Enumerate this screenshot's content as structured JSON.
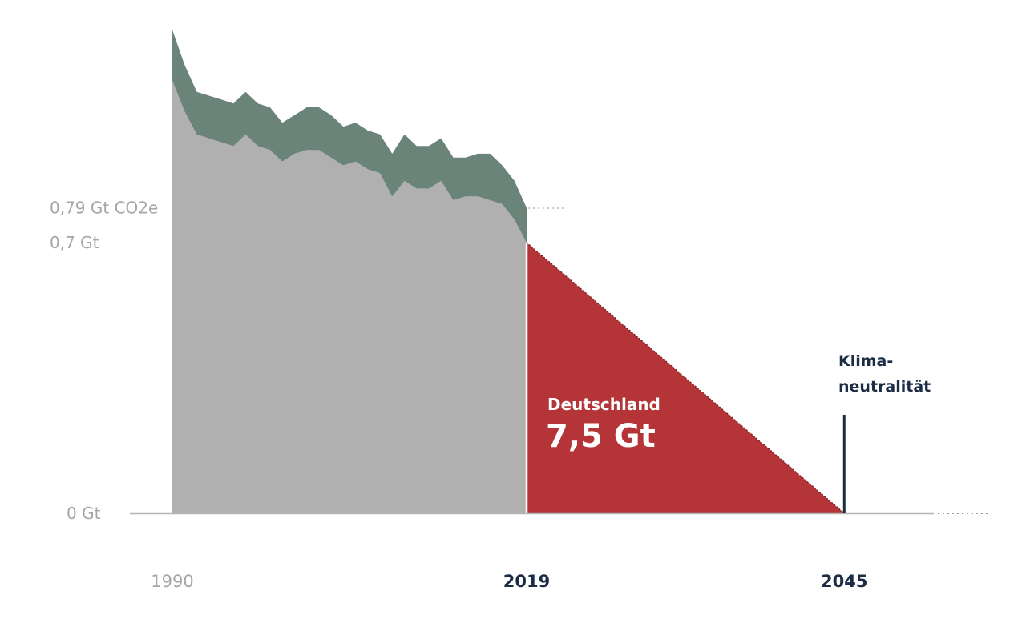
{
  "chart_data": {
    "type": "area",
    "title": "",
    "xlabel": "",
    "ylabel": "",
    "xlim": [
      1990,
      2050
    ],
    "ylim": [
      0,
      1.25
    ],
    "grid": false,
    "x_ticks": [
      {
        "value": 1990,
        "label": "1990",
        "emphasis": false
      },
      {
        "value": 2019,
        "label": "2019",
        "emphasis": true
      },
      {
        "value": 2045,
        "label": "2045",
        "emphasis": true
      }
    ],
    "y_ticks": [
      {
        "value": 0,
        "label": "0 Gt"
      },
      {
        "value": 0.7,
        "label": "0,7 Gt"
      },
      {
        "value": 0.79,
        "label": "0,79 Gt CO2e"
      }
    ],
    "series": [
      {
        "color": "#b0b0b0",
        "years": [
          1990,
          1991,
          1992,
          1993,
          1994,
          1995,
          1996,
          1997,
          1998,
          1999,
          2000,
          2001,
          2002,
          2003,
          2004,
          2005,
          2006,
          2007,
          2008,
          2009,
          2010,
          2011,
          2012,
          2013,
          2014,
          2015,
          2016,
          2017,
          2018,
          2019
        ],
        "values": [
          1.12,
          1.04,
          0.98,
          0.97,
          0.96,
          0.95,
          0.98,
          0.95,
          0.94,
          0.91,
          0.93,
          0.94,
          0.94,
          0.92,
          0.9,
          0.91,
          0.89,
          0.88,
          0.82,
          0.86,
          0.84,
          0.84,
          0.86,
          0.81,
          0.82,
          0.82,
          0.81,
          0.8,
          0.76,
          0.7
        ]
      },
      {
        "color": "#6a8479",
        "years": [
          1990,
          1991,
          1992,
          1993,
          1994,
          1995,
          1996,
          1997,
          1998,
          1999,
          2000,
          2001,
          2002,
          2003,
          2004,
          2005,
          2006,
          2007,
          2008,
          2009,
          2010,
          2011,
          2012,
          2013,
          2014,
          2015,
          2016,
          2017,
          2018,
          2019
        ],
        "values": [
          1.25,
          1.16,
          1.09,
          1.08,
          1.07,
          1.06,
          1.09,
          1.06,
          1.05,
          1.01,
          1.03,
          1.05,
          1.05,
          1.03,
          1.0,
          1.01,
          0.99,
          0.98,
          0.93,
          0.98,
          0.95,
          0.95,
          0.97,
          0.92,
          0.92,
          0.93,
          0.93,
          0.9,
          0.86,
          0.79
        ]
      },
      {
        "name": "Deutschland",
        "color": "#b53437",
        "years": [
          2019,
          2045
        ],
        "values": [
          0.7,
          0
        ]
      }
    ],
    "annotations": {
      "budget_name": "Deutschland",
      "budget_value": "7,5 Gt",
      "target_line1": "Klima-",
      "target_line2": "neutralität"
    },
    "colors": {
      "historical": "#b0b0b0",
      "historical_extra": "#6a8479",
      "budget": "#b53437",
      "accent": "#1b2d45",
      "muted": "#a6a6a6"
    }
  }
}
